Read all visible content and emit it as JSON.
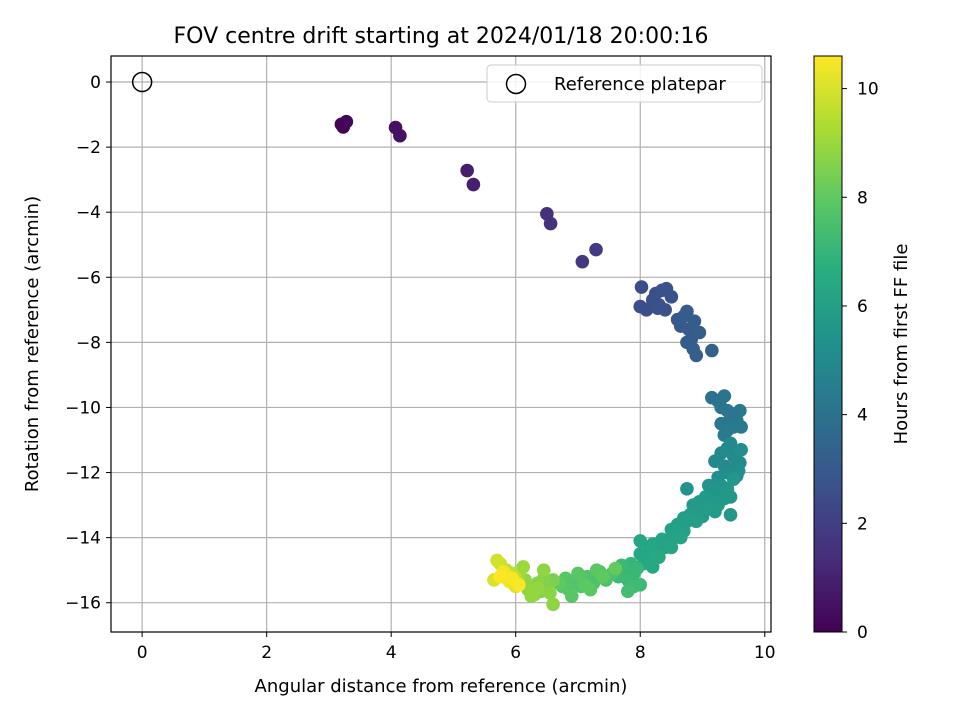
{
  "chart_data": {
    "type": "scatter",
    "title": "FOV centre drift starting at 2024/01/18 20:00:16",
    "xlabel": "Angular distance from reference (arcmin)",
    "ylabel": "Rotation from reference (arcmin)",
    "xlim": [
      -0.5,
      10.1
    ],
    "ylim": [
      -16.9,
      0.8
    ],
    "x_ticks": [
      0,
      2,
      4,
      6,
      8,
      10
    ],
    "y_ticks": [
      0,
      -2,
      -4,
      -6,
      -8,
      -10,
      -12,
      -14,
      -16
    ],
    "grid": true,
    "legend": {
      "placement": "top-right",
      "entries": [
        "Reference platepar"
      ]
    },
    "colorbar": {
      "label": "Hours from first FF file",
      "colormap": "viridis",
      "range": [
        0,
        10.6
      ],
      "ticks": [
        0,
        2,
        4,
        6,
        8,
        10
      ]
    },
    "reference_point": {
      "x": 0,
      "y": 0,
      "label": "Reference platepar"
    },
    "series": [
      {
        "points": [
          [
            3.2,
            -1.3,
            0.1
          ],
          [
            3.23,
            -1.38,
            0.12
          ],
          [
            3.28,
            -1.22,
            0.15
          ],
          [
            4.07,
            -1.4,
            0.45
          ],
          [
            4.14,
            -1.65,
            0.5
          ],
          [
            5.22,
            -2.72,
            0.9
          ],
          [
            5.32,
            -3.15,
            0.95
          ],
          [
            6.5,
            -4.05,
            1.5
          ],
          [
            6.56,
            -4.35,
            1.55
          ],
          [
            7.07,
            -5.52,
            1.8
          ],
          [
            7.29,
            -5.15,
            1.85
          ],
          [
            8.02,
            -6.3,
            2.5
          ],
          [
            8.0,
            -6.9,
            2.55
          ],
          [
            8.1,
            -7.0,
            2.55
          ],
          [
            8.2,
            -6.7,
            2.6
          ],
          [
            8.25,
            -6.5,
            2.6
          ],
          [
            8.3,
            -6.85,
            2.6
          ],
          [
            8.35,
            -6.4,
            2.65
          ],
          [
            8.4,
            -7.0,
            2.65
          ],
          [
            8.42,
            -6.35,
            2.7
          ],
          [
            8.5,
            -6.6,
            2.7
          ],
          [
            8.28,
            -6.95,
            2.65
          ],
          [
            8.6,
            -7.3,
            3.0
          ],
          [
            8.65,
            -7.5,
            3.0
          ],
          [
            8.7,
            -7.2,
            3.05
          ],
          [
            8.75,
            -7.05,
            3.05
          ],
          [
            8.78,
            -7.6,
            3.1
          ],
          [
            8.82,
            -7.9,
            3.1
          ],
          [
            8.87,
            -7.35,
            3.15
          ],
          [
            8.75,
            -8.0,
            3.15
          ],
          [
            8.9,
            -8.4,
            3.2
          ],
          [
            8.95,
            -7.7,
            3.2
          ],
          [
            8.85,
            -8.2,
            3.25
          ],
          [
            9.15,
            -8.25,
            3.3
          ],
          [
            9.15,
            -9.7,
            4.0
          ],
          [
            9.25,
            -9.8,
            4.05
          ],
          [
            9.3,
            -10.0,
            4.1
          ],
          [
            9.35,
            -9.65,
            4.1
          ],
          [
            9.4,
            -10.1,
            4.15
          ],
          [
            9.3,
            -10.5,
            4.2
          ],
          [
            9.45,
            -10.3,
            4.25
          ],
          [
            9.5,
            -10.6,
            4.3
          ],
          [
            9.55,
            -10.4,
            4.3
          ],
          [
            9.6,
            -10.1,
            4.35
          ],
          [
            9.4,
            -10.7,
            4.35
          ],
          [
            9.62,
            -10.6,
            4.4
          ],
          [
            9.35,
            -10.85,
            4.4
          ],
          [
            9.5,
            -10.2,
            4.2
          ],
          [
            9.2,
            -11.65,
            5.0
          ],
          [
            9.3,
            -11.4,
            5.0
          ],
          [
            9.35,
            -11.8,
            5.05
          ],
          [
            9.4,
            -11.25,
            5.05
          ],
          [
            9.45,
            -11.9,
            5.1
          ],
          [
            9.5,
            -11.5,
            5.1
          ],
          [
            9.55,
            -12.1,
            5.15
          ],
          [
            9.6,
            -11.7,
            5.15
          ],
          [
            9.62,
            -11.3,
            5.2
          ],
          [
            9.5,
            -12.2,
            5.2
          ],
          [
            9.38,
            -12.0,
            5.2
          ],
          [
            9.25,
            -12.15,
            5.25
          ],
          [
            9.45,
            -11.1,
            5.0
          ],
          [
            9.58,
            -11.95,
            5.3
          ],
          [
            9.1,
            -12.4,
            5.5
          ],
          [
            9.2,
            -12.6,
            5.55
          ],
          [
            9.3,
            -12.4,
            5.55
          ],
          [
            9.35,
            -12.8,
            5.6
          ],
          [
            9.4,
            -12.5,
            5.6
          ],
          [
            9.45,
            -12.75,
            5.65
          ],
          [
            9.5,
            -12.2,
            5.65
          ],
          [
            9.15,
            -12.9,
            5.7
          ],
          [
            9.25,
            -13.0,
            5.7
          ],
          [
            9.05,
            -12.75,
            5.75
          ],
          [
            8.95,
            -12.9,
            5.75
          ],
          [
            8.85,
            -13.0,
            5.8
          ],
          [
            8.95,
            -13.2,
            5.8
          ],
          [
            9.0,
            -13.35,
            5.85
          ],
          [
            9.1,
            -13.1,
            5.85
          ],
          [
            8.8,
            -13.3,
            5.9
          ],
          [
            8.7,
            -13.4,
            5.9
          ],
          [
            8.9,
            -13.5,
            5.95
          ],
          [
            8.75,
            -12.5,
            5.5
          ],
          [
            9.45,
            -13.3,
            5.6
          ],
          [
            9.2,
            -13.2,
            5.8
          ],
          [
            8.6,
            -13.6,
            6.0
          ],
          [
            8.5,
            -13.75,
            6.05
          ],
          [
            8.7,
            -13.8,
            6.05
          ],
          [
            8.55,
            -14.0,
            6.1
          ],
          [
            8.45,
            -14.1,
            6.1
          ],
          [
            8.35,
            -14.05,
            6.15
          ],
          [
            8.4,
            -14.3,
            6.15
          ],
          [
            8.3,
            -14.4,
            6.2
          ],
          [
            8.65,
            -14.0,
            6.2
          ],
          [
            8.2,
            -14.2,
            6.25
          ],
          [
            8.1,
            -14.6,
            6.3
          ],
          [
            8.15,
            -14.35,
            6.3
          ],
          [
            8.0,
            -14.5,
            6.35
          ],
          [
            8.05,
            -14.8,
            6.4
          ],
          [
            8.2,
            -14.9,
            6.4
          ],
          [
            8.0,
            -14.1,
            6.3
          ],
          [
            8.3,
            -14.6,
            6.45
          ],
          [
            8.5,
            -14.3,
            6.25
          ],
          [
            8.75,
            -13.5,
            6.0
          ],
          [
            7.85,
            -14.8,
            7.0
          ],
          [
            7.75,
            -15.0,
            7.05
          ],
          [
            7.9,
            -15.1,
            7.1
          ],
          [
            7.95,
            -14.95,
            7.1
          ],
          [
            7.8,
            -15.3,
            7.15
          ],
          [
            7.7,
            -14.85,
            7.2
          ],
          [
            7.65,
            -15.2,
            7.2
          ],
          [
            8.0,
            -15.45,
            7.25
          ],
          [
            7.9,
            -15.5,
            7.3
          ],
          [
            7.8,
            -15.65,
            7.35
          ],
          [
            7.55,
            -15.1,
            7.5
          ],
          [
            7.45,
            -15.3,
            7.55
          ],
          [
            7.35,
            -15.05,
            7.6
          ],
          [
            7.25,
            -15.4,
            7.6
          ],
          [
            7.15,
            -15.2,
            7.65
          ],
          [
            7.05,
            -15.5,
            7.7
          ],
          [
            6.95,
            -15.3,
            7.7
          ],
          [
            6.85,
            -15.6,
            7.75
          ],
          [
            6.8,
            -15.25,
            7.8
          ],
          [
            6.75,
            -15.5,
            7.8
          ],
          [
            6.9,
            -15.8,
            7.85
          ],
          [
            7.0,
            -15.1,
            7.85
          ],
          [
            7.2,
            -15.6,
            7.9
          ],
          [
            7.3,
            -15.0,
            7.9
          ],
          [
            7.1,
            -15.45,
            7.95
          ],
          [
            6.7,
            -15.4,
            8.0
          ],
          [
            7.4,
            -15.2,
            8.0
          ],
          [
            7.6,
            -14.95,
            8.05
          ],
          [
            6.6,
            -15.3,
            8.5
          ],
          [
            6.5,
            -15.5,
            8.55
          ],
          [
            6.45,
            -15.25,
            8.6
          ],
          [
            6.4,
            -15.65,
            8.6
          ],
          [
            6.35,
            -15.4,
            8.65
          ],
          [
            6.3,
            -15.75,
            8.7
          ],
          [
            6.25,
            -15.5,
            8.7
          ],
          [
            6.55,
            -15.7,
            8.75
          ],
          [
            6.45,
            -15.0,
            8.8
          ],
          [
            6.6,
            -16.05,
            8.8
          ],
          [
            6.2,
            -15.6,
            8.85
          ],
          [
            6.15,
            -15.3,
            8.85
          ],
          [
            6.25,
            -15.8,
            8.9
          ],
          [
            6.35,
            -15.55,
            8.9
          ],
          [
            6.12,
            -14.9,
            9.0
          ],
          [
            6.05,
            -15.2,
            9.05
          ],
          [
            6.0,
            -15.25,
            9.5
          ],
          [
            5.95,
            -15.1,
            9.55
          ],
          [
            5.9,
            -15.3,
            9.6
          ],
          [
            5.85,
            -15.0,
            9.65
          ],
          [
            5.8,
            -15.2,
            9.7
          ],
          [
            5.75,
            -14.8,
            9.8
          ],
          [
            5.7,
            -14.7,
            9.9
          ],
          [
            5.65,
            -15.3,
            10.0
          ],
          [
            5.95,
            -15.4,
            10.0
          ],
          [
            6.0,
            -15.5,
            10.1
          ],
          [
            5.85,
            -15.15,
            10.2
          ],
          [
            5.9,
            -15.35,
            10.3
          ],
          [
            5.8,
            -15.05,
            10.4
          ],
          [
            5.95,
            -15.25,
            10.5
          ],
          [
            6.05,
            -15.45,
            10.55
          ],
          [
            5.75,
            -15.2,
            10.6
          ]
        ]
      }
    ]
  }
}
